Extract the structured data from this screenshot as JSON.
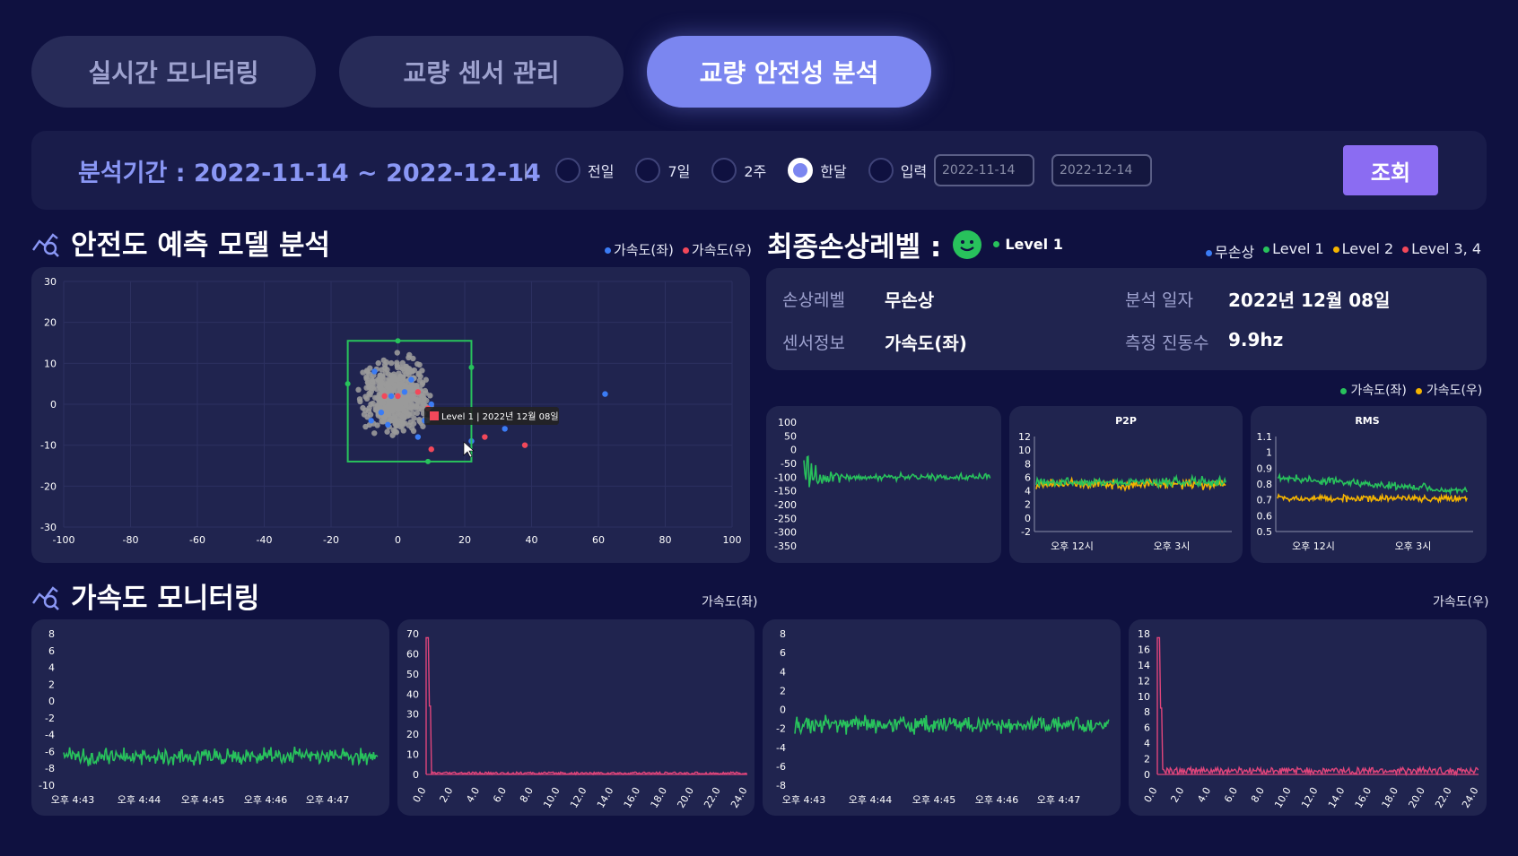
{
  "tabs": [
    {
      "label": "실시간 모니터링",
      "active": false
    },
    {
      "label": "교량 센서 관리",
      "active": false
    },
    {
      "label": "교량 안전성 분석",
      "active": true
    }
  ],
  "filter": {
    "period_label": "분석기간 : 2022-11-14 ~ 2022-12-14",
    "separator": "|",
    "options": [
      {
        "label": "전일",
        "selected": false
      },
      {
        "label": "7일",
        "selected": false
      },
      {
        "label": "2주",
        "selected": false
      },
      {
        "label": "한달",
        "selected": true
      },
      {
        "label": "입력",
        "selected": false
      }
    ],
    "start_date": "2022-11-14",
    "end_date": "2022-12-14",
    "tilde": "~",
    "query_label": "조회"
  },
  "prediction": {
    "title": "안전도 예측 모델 분석",
    "legend": [
      {
        "label": "가속도(좌)",
        "color": "#3b7cf5"
      },
      {
        "label": "가속도(우)",
        "color": "#f2485a"
      }
    ],
    "tooltip": "Level 1 | 2022년 12월 08일"
  },
  "damage": {
    "title": "최종손상레벨 :",
    "level": "Level 1",
    "level_color": "#28c25c",
    "legend": [
      {
        "label": "무손상",
        "color": "#3b7cf5"
      },
      {
        "label": "Level 1",
        "color": "#28c25c"
      },
      {
        "label": "Level 2",
        "color": "#f5b400"
      },
      {
        "label": "Level 3, 4",
        "color": "#f2485a"
      }
    ],
    "info": {
      "damage_level_label": "손상레벨",
      "damage_level_value": "무손상",
      "analysis_date_label": "분석 일자",
      "analysis_date_value": "2022년 12월 08일",
      "sensor_label": "센서정보",
      "sensor_value": "가속도(좌)",
      "freq_label": "측정 진동수",
      "freq_value": "9.9hz"
    },
    "sub_legend": [
      {
        "label": "가속도(좌)",
        "color": "#28c25c"
      },
      {
        "label": "가속도(우)",
        "color": "#f5b400"
      }
    ]
  },
  "accel": {
    "title": "가속도 모니터링",
    "left_label": "가속도(좌)",
    "right_label": "가속도(우)"
  },
  "chart_data": [
    {
      "type": "scatter",
      "xlim": [
        -100,
        100
      ],
      "ylim": [
        -30,
        30
      ],
      "xticks": [
        "-100",
        "-80",
        "-60",
        "-40",
        "-20",
        "0",
        "20",
        "40",
        "60",
        "80",
        "100"
      ],
      "yticks": [
        "30",
        "20",
        "10",
        "0",
        "-10",
        "-20",
        "-30"
      ],
      "series": [
        {
          "name": "가속도(좌)",
          "color": "#3b7cf5",
          "points": [
            [
              -7,
              8
            ],
            [
              4,
              6
            ],
            [
              -5,
              -2
            ],
            [
              10,
              0
            ],
            [
              -2,
              2
            ],
            [
              6,
              -8
            ],
            [
              -8,
              -4
            ],
            [
              2,
              3
            ],
            [
              22,
              -9
            ],
            [
              32,
              -6
            ],
            [
              62,
              2.5
            ],
            [
              -3,
              -5
            ],
            [
              8,
              -4
            ]
          ]
        },
        {
          "name": "가속도(우)",
          "color": "#f2485a",
          "points": [
            [
              -4,
              2
            ],
            [
              0,
              2
            ],
            [
              6,
              3
            ],
            [
              9,
              -1
            ],
            [
              26,
              -8
            ],
            [
              38,
              -10
            ],
            [
              10,
              -11
            ]
          ]
        }
      ]
    },
    {
      "type": "line",
      "yticks": [
        "100",
        "50",
        "0",
        "-50",
        "-100",
        "-150",
        "-200",
        "-250",
        "-300",
        "-350"
      ],
      "ylim": [
        -350,
        100
      ],
      "series": [
        {
          "name": "가속도(좌)",
          "color": "#28c25c"
        }
      ]
    },
    {
      "type": "line",
      "title": "P2P",
      "yticks": [
        "12",
        "10",
        "8",
        "6",
        "4",
        "2",
        "0",
        "-2"
      ],
      "ylim": [
        -2,
        12
      ],
      "xticks": [
        "오후 12시",
        "오후 3시"
      ],
      "series": [
        {
          "name": "가속도(좌)",
          "color": "#28c25c"
        },
        {
          "name": "가속도(우)",
          "color": "#f5b400"
        }
      ]
    },
    {
      "type": "line",
      "title": "RMS",
      "yticks": [
        "1.1",
        "1",
        "0.9",
        "0.8",
        "0.7",
        "0.6",
        "0.5"
      ],
      "ylim": [
        0.5,
        1.1
      ],
      "xticks": [
        "오후 12시",
        "오후 3시"
      ],
      "series": [
        {
          "name": "가속도(좌)",
          "color": "#28c25c"
        },
        {
          "name": "가속도(우)",
          "color": "#f5b400"
        }
      ]
    },
    {
      "type": "line",
      "yticks": [
        "8",
        "6",
        "4",
        "2",
        "0",
        "-2",
        "-4",
        "-6",
        "-8",
        "-10"
      ],
      "ylim": [
        -10,
        8
      ],
      "xticks": [
        "오후 4:43",
        "오후 4:44",
        "오후 4:45",
        "오후 4:46",
        "오후 4:47"
      ],
      "series": [
        {
          "name": "가속도(좌)",
          "color": "#28c25c"
        }
      ]
    },
    {
      "type": "bar",
      "yticks": [
        "70",
        "60",
        "50",
        "40",
        "30",
        "20",
        "10",
        "0"
      ],
      "ylim": [
        0,
        70
      ],
      "xticks": [
        "0.0",
        "2.0",
        "4.0",
        "6.0",
        "8.0",
        "10.0",
        "12.0",
        "14.0",
        "16.0",
        "18.0",
        "20.0",
        "22.0",
        "24.0"
      ],
      "series": [
        {
          "name": "가속도(좌)",
          "color": "#e0457b"
        }
      ]
    },
    {
      "type": "line",
      "yticks": [
        "8",
        "6",
        "4",
        "2",
        "0",
        "-2",
        "-4",
        "-6",
        "-8"
      ],
      "ylim": [
        -8,
        8
      ],
      "xticks": [
        "오후 4:43",
        "오후 4:44",
        "오후 4:45",
        "오후 4:46",
        "오후 4:47"
      ],
      "series": [
        {
          "name": "가속도(우)",
          "color": "#28c25c"
        }
      ]
    },
    {
      "type": "bar",
      "yticks": [
        "18",
        "16",
        "14",
        "12",
        "10",
        "8",
        "6",
        "4",
        "2",
        "0"
      ],
      "ylim": [
        0,
        18
      ],
      "xticks": [
        "0.0",
        "2.0",
        "4.0",
        "6.0",
        "8.0",
        "10.0",
        "12.0",
        "14.0",
        "16.0",
        "18.0",
        "20.0",
        "22.0",
        "24.0"
      ],
      "series": [
        {
          "name": "가속도(우)",
          "color": "#e0457b"
        }
      ]
    }
  ]
}
